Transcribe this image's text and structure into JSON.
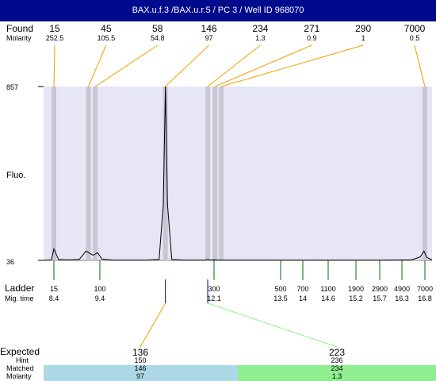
{
  "title": "BAX.u.f.3 /BAX.u.r.5 / PC 3 / Well ID 968070",
  "labels": {
    "found": "Found",
    "molarity": "Molarity",
    "fluo": "Fluo.",
    "ladder": "Ladder",
    "mig_time": "Mig. time",
    "expected": "Expected",
    "hint": "Hint",
    "matched": "Matched",
    "molarity2": "Molarity"
  },
  "colors": {
    "title_bg": "#000a8c",
    "plot_bg": "#e6e6f5",
    "peak_band": "#c8c8d4",
    "connector": "#f0a000",
    "ladder_tick": "#007000",
    "expected_marker": "#0000aa",
    "matched_row_1": "#add8e6",
    "matched_row_2": "#90ee90",
    "connector_2": "#90ee90"
  },
  "chart_data": {
    "type": "line",
    "ylabel": "Fluo.",
    "y_ticks": [
      "857",
      "36"
    ],
    "found_peaks": [
      {
        "size": "15",
        "molarity": "252.5",
        "time": 8.4
      },
      {
        "size": "45",
        "molarity": "105.5",
        "time": 9.15
      },
      {
        "size": "58",
        "molarity": "54.8",
        "time": 9.3
      },
      {
        "size": "146",
        "molarity": "97",
        "time": 10.95
      },
      {
        "size": "234",
        "molarity": "1.3",
        "time": 11.95
      },
      {
        "size": "271",
        "molarity": "0.9",
        "time": 12.12
      },
      {
        "size": "290",
        "molarity": "1",
        "time": 12.25
      },
      {
        "size": "7000",
        "molarity": "0.5",
        "time": 16.8
      }
    ],
    "ladder": [
      {
        "size": "15",
        "time": "8.4"
      },
      {
        "size": "100",
        "time": "9.4"
      },
      {
        "size": "300",
        "time": "12.1"
      },
      {
        "size": "500",
        "time": "13.5"
      },
      {
        "size": "700",
        "time": "14"
      },
      {
        "size": "1100",
        "time": "14.6"
      },
      {
        "size": "1900",
        "time": "15.2"
      },
      {
        "size": "2900",
        "time": "15.7"
      },
      {
        "size": "4900",
        "time": "16.3"
      },
      {
        "size": "7000",
        "time": "16.8"
      }
    ],
    "trace": [
      [
        8.0,
        36
      ],
      [
        8.3,
        38
      ],
      [
        8.4,
        90
      ],
      [
        8.5,
        40
      ],
      [
        8.7,
        38
      ],
      [
        8.95,
        40
      ],
      [
        9.1,
        80
      ],
      [
        9.25,
        60
      ],
      [
        9.35,
        72
      ],
      [
        9.45,
        42
      ],
      [
        9.7,
        37
      ],
      [
        10.5,
        37
      ],
      [
        10.8,
        40
      ],
      [
        10.9,
        300
      ],
      [
        10.95,
        857
      ],
      [
        11.0,
        300
      ],
      [
        11.1,
        40
      ],
      [
        11.4,
        37
      ],
      [
        11.9,
        37
      ],
      [
        11.95,
        41
      ],
      [
        12.0,
        37
      ],
      [
        12.1,
        39
      ],
      [
        12.2,
        37
      ],
      [
        12.35,
        37
      ],
      [
        14.5,
        37
      ],
      [
        15.7,
        37
      ],
      [
        16.5,
        38
      ],
      [
        16.7,
        52
      ],
      [
        16.78,
        80
      ],
      [
        16.85,
        50
      ],
      [
        17.0,
        38
      ]
    ],
    "expected": [
      {
        "size": "136",
        "hint": "150",
        "matched": "146",
        "molarity": "97"
      },
      {
        "size": "223",
        "hint": "236",
        "matched": "234",
        "molarity": "1.3"
      }
    ]
  }
}
